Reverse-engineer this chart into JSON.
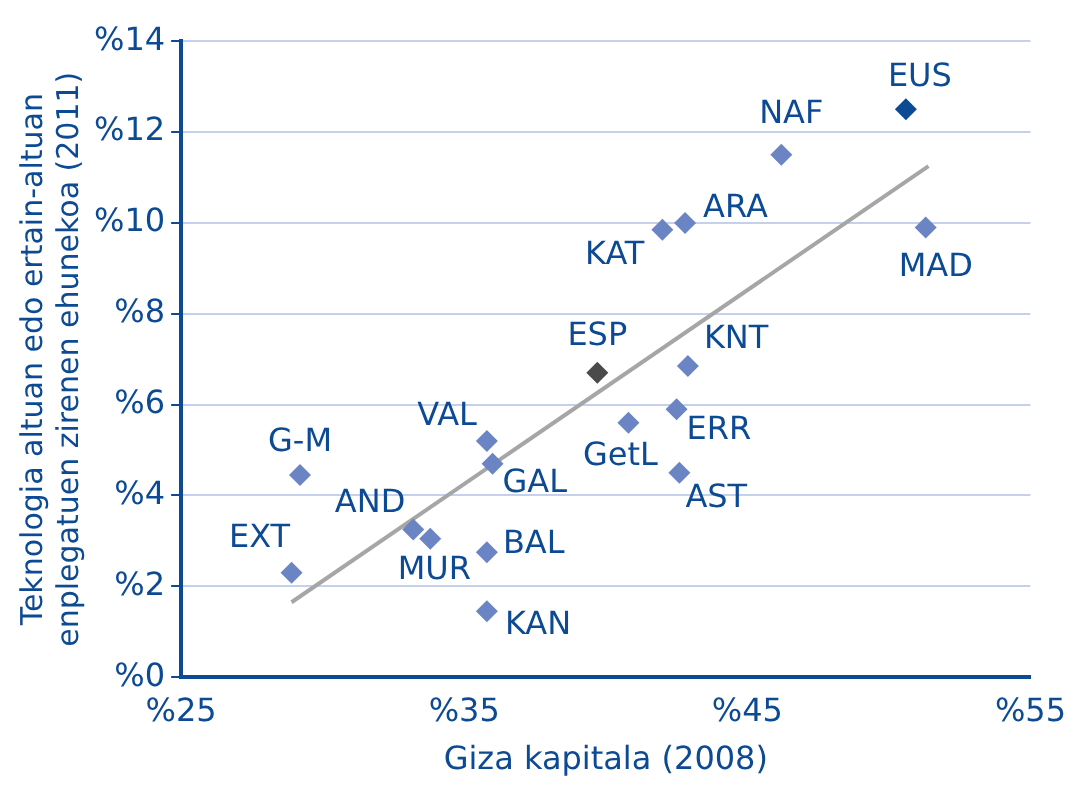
{
  "chart_data": {
    "type": "scatter",
    "xlabel": "Giza kapitala (2008)",
    "ylabel": "Teknologia altuan edo ertain-altuan enplegatuen zirenen ehunekoa (2011)",
    "xlim": [
      25,
      55
    ],
    "xticks": [
      {
        "value": 25,
        "label": "%25"
      },
      {
        "value": 35,
        "label": "%35"
      },
      {
        "value": 45,
        "label": "%45"
      },
      {
        "value": 55,
        "label": "%55"
      }
    ],
    "ylim": [
      0,
      14
    ],
    "yticks": [
      {
        "value": 0,
        "label": "%0"
      },
      {
        "value": 2,
        "label": "%2"
      },
      {
        "value": 4,
        "label": "%4"
      },
      {
        "value": 6,
        "label": "%6"
      },
      {
        "value": 8,
        "label": "%8"
      },
      {
        "value": 10,
        "label": "%10"
      },
      {
        "value": 12,
        "label": "%12"
      },
      {
        "value": 14,
        "label": "%14"
      }
    ],
    "grid": "y",
    "legend": false,
    "marker": "diamond",
    "series": [
      {
        "x": [
          50.6,
          46.2,
          42.8,
          42.0,
          51.3,
          39.7,
          42.9,
          40.8,
          42.5,
          42.6,
          35.8,
          36.0,
          29.2,
          33.2,
          33.8,
          35.8,
          35.8,
          28.9
        ],
        "values": [
          12.5,
          11.5,
          10.0,
          9.85,
          9.9,
          6.7,
          6.85,
          5.6,
          5.9,
          4.5,
          5.2,
          4.7,
          4.45,
          3.25,
          3.05,
          2.75,
          1.45,
          2.3
        ],
        "colors": [
          "#0d4a94",
          "#6b84c4",
          "#6b84c4",
          "#6b84c4",
          "#6b84c4",
          "#4a4a4a",
          "#6b84c4",
          "#6b84c4",
          "#6b84c4",
          "#6b84c4",
          "#6b84c4",
          "#6b84c4",
          "#6b84c4",
          "#6b84c4",
          "#6b84c4",
          "#6b84c4",
          "#6b84c4",
          "#6b84c4"
        ]
      },
      {
        "type": "line",
        "x": [
          28.9,
          51.4
        ],
        "values": [
          1.65,
          11.25
        ],
        "color": "#a6a6a6",
        "marker": "none",
        "line_style": "solid"
      }
    ],
    "annotations": [
      {
        "text": "EUS",
        "x": 50.6,
        "y": 12.5
      },
      {
        "text": "NAF",
        "x": 46.2,
        "y": 11.5
      },
      {
        "text": "ARA",
        "x": 42.8,
        "y": 10.0
      },
      {
        "text": "KAT",
        "x": 42.0,
        "y": 9.85
      },
      {
        "text": "MAD",
        "x": 51.3,
        "y": 9.9
      },
      {
        "text": "ESP",
        "x": 39.7,
        "y": 6.7
      },
      {
        "text": "KNT",
        "x": 42.9,
        "y": 6.85
      },
      {
        "text": "GetL",
        "x": 40.8,
        "y": 5.6
      },
      {
        "text": "ERR",
        "x": 42.5,
        "y": 5.9
      },
      {
        "text": "AST",
        "x": 42.6,
        "y": 4.5
      },
      {
        "text": "VAL",
        "x": 35.8,
        "y": 5.2
      },
      {
        "text": "GAL",
        "x": 36.0,
        "y": 4.7
      },
      {
        "text": "G-M",
        "x": 29.2,
        "y": 4.45
      },
      {
        "text": "AND",
        "x": 33.2,
        "y": 3.25
      },
      {
        "text": "MUR",
        "x": 33.8,
        "y": 3.05
      },
      {
        "text": "BAL",
        "x": 35.8,
        "y": 2.75
      },
      {
        "text": "KAN",
        "x": 35.8,
        "y": 1.45
      },
      {
        "text": "EXT",
        "x": 28.9,
        "y": 2.3
      }
    ]
  }
}
